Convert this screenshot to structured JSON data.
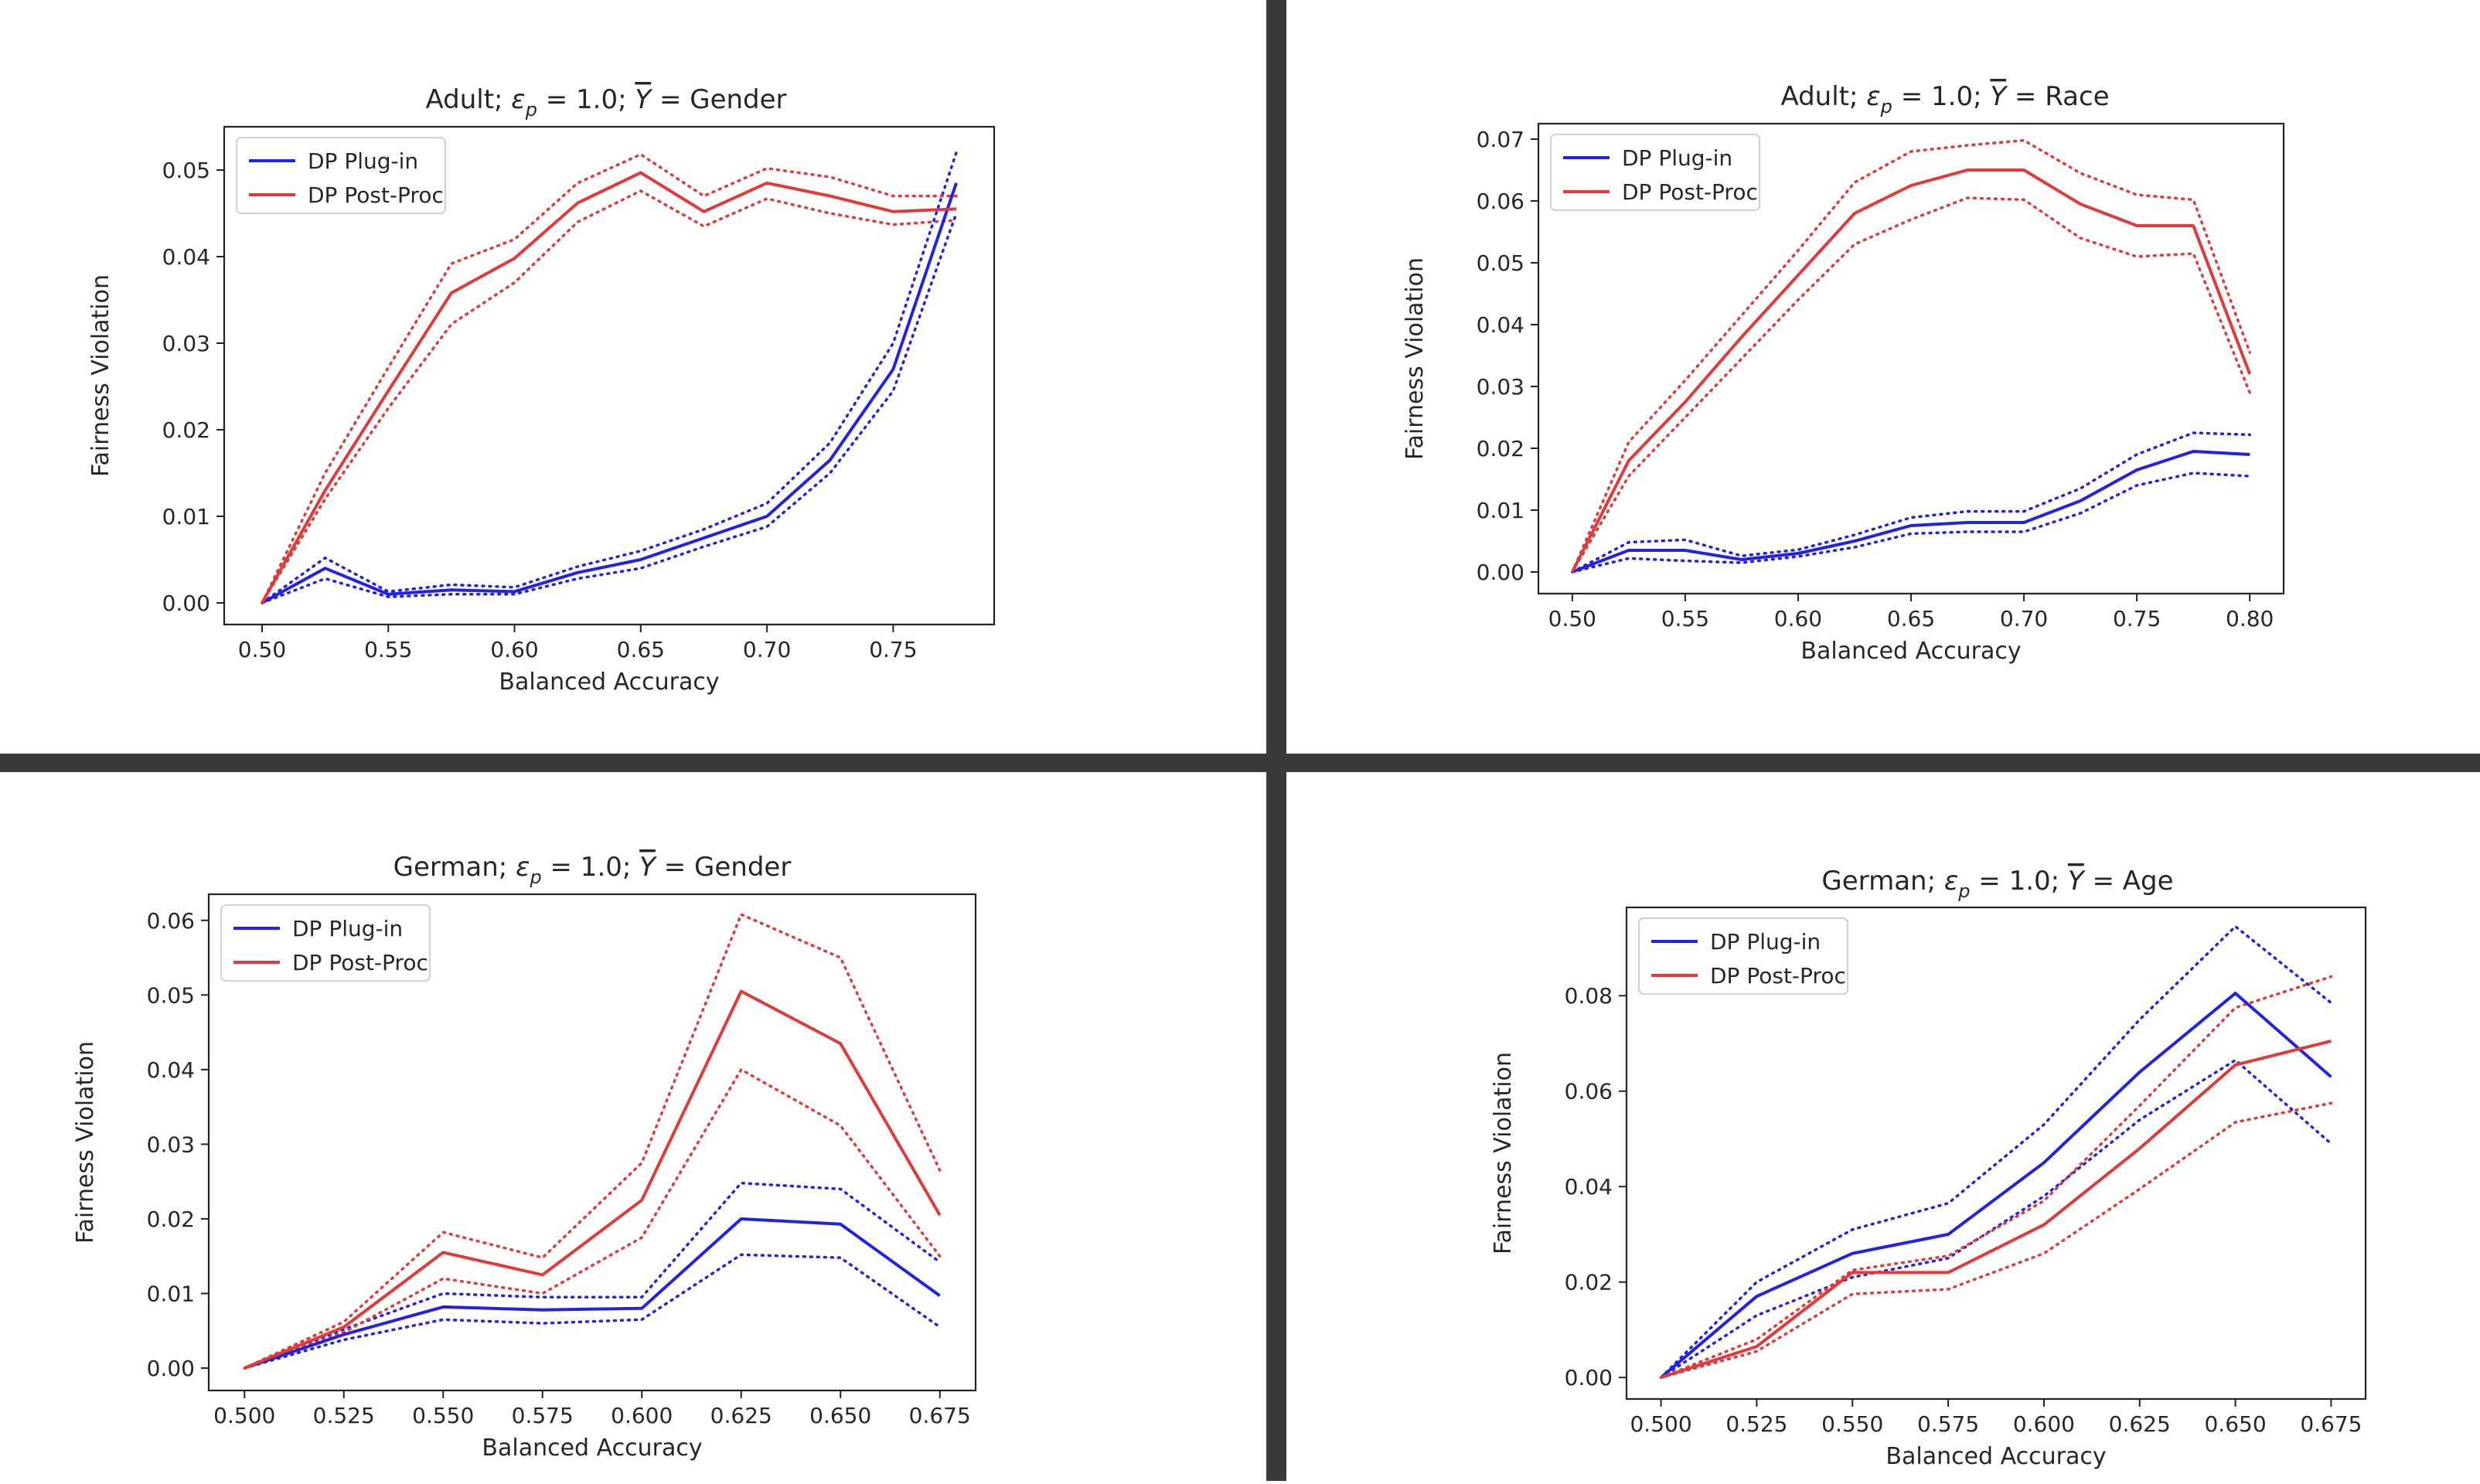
{
  "divider_color": "#3a3a3a",
  "legend_labels": {
    "plugin": "DP Plug-in",
    "postproc": "DP Post-Proc"
  },
  "colors": {
    "plugin": "#2222e6",
    "postproc": "#e03a3a"
  },
  "chart_data": [
    {
      "type": "line",
      "title_prefix": "Adult; ",
      "eps_label": "ε",
      "eps_sub": "p",
      "eps_value": " = 1.0;  ",
      "ybar": "Y",
      "title_suffix": " = Gender",
      "xlabel": "Balanced Accuracy",
      "ylabel": "Fairness Violation",
      "xlim": [
        0.485,
        0.79
      ],
      "ylim": [
        -0.0025,
        0.055
      ],
      "xticks": [
        0.5,
        0.55,
        0.6,
        0.65,
        0.7,
        0.75
      ],
      "xtick_labels": [
        "0.50",
        "0.55",
        "0.60",
        "0.65",
        "0.70",
        "0.75"
      ],
      "yticks": [
        0.0,
        0.01,
        0.02,
        0.03,
        0.04,
        0.05
      ],
      "ytick_labels": [
        "0.00",
        "0.01",
        "0.02",
        "0.03",
        "0.04",
        "0.05"
      ],
      "legend": "top-left",
      "series": [
        {
          "name": "DP Plug-in",
          "color": "plugin",
          "x": [
            0.5,
            0.525,
            0.55,
            0.575,
            0.6,
            0.625,
            0.65,
            0.675,
            0.7,
            0.725,
            0.75,
            0.775
          ],
          "y": [
            0.0,
            0.004,
            0.001,
            0.0015,
            0.0013,
            0.0035,
            0.005,
            0.0075,
            0.01,
            0.0165,
            0.027,
            0.0485
          ],
          "lower": [
            0.0,
            0.0028,
            0.0007,
            0.001,
            0.001,
            0.0028,
            0.004,
            0.0065,
            0.0088,
            0.015,
            0.0245,
            0.045
          ],
          "upper": [
            0.0,
            0.0052,
            0.0013,
            0.0021,
            0.0018,
            0.0042,
            0.006,
            0.0085,
            0.0115,
            0.0185,
            0.03,
            0.052
          ]
        },
        {
          "name": "DP Post-Proc",
          "color": "postproc",
          "x": [
            0.5,
            0.525,
            0.55,
            0.575,
            0.6,
            0.625,
            0.65,
            0.675,
            0.7,
            0.725,
            0.75,
            0.775
          ],
          "y": [
            0.0,
            0.013,
            0.0245,
            0.0358,
            0.0398,
            0.0462,
            0.0497,
            0.0452,
            0.0485,
            0.047,
            0.0452,
            0.0455
          ],
          "lower": [
            0.0,
            0.012,
            0.0225,
            0.0322,
            0.037,
            0.044,
            0.0476,
            0.0435,
            0.0467,
            0.045,
            0.0437,
            0.0442
          ],
          "upper": [
            0.0,
            0.015,
            0.0272,
            0.0392,
            0.042,
            0.0485,
            0.0518,
            0.047,
            0.0502,
            0.0492,
            0.047,
            0.047
          ]
        }
      ]
    },
    {
      "type": "line",
      "title_prefix": "Adult; ",
      "eps_label": "ε",
      "eps_sub": "p",
      "eps_value": " = 1.0;  ",
      "ybar": "Y",
      "title_suffix": " = Race",
      "xlabel": "Balanced Accuracy",
      "ylabel": "Fairness Violation",
      "xlim": [
        0.485,
        0.815
      ],
      "ylim": [
        -0.0035,
        0.0725
      ],
      "xticks": [
        0.5,
        0.55,
        0.6,
        0.65,
        0.7,
        0.75,
        0.8
      ],
      "xtick_labels": [
        "0.50",
        "0.55",
        "0.60",
        "0.65",
        "0.70",
        "0.75",
        "0.80"
      ],
      "yticks": [
        0.0,
        0.01,
        0.02,
        0.03,
        0.04,
        0.05,
        0.06,
        0.07
      ],
      "ytick_labels": [
        "0.00",
        "0.01",
        "0.02",
        "0.03",
        "0.04",
        "0.05",
        "0.06",
        "0.07"
      ],
      "legend": "top-left",
      "series": [
        {
          "name": "DP Plug-in",
          "color": "plugin",
          "x": [
            0.5,
            0.525,
            0.55,
            0.575,
            0.6,
            0.625,
            0.65,
            0.675,
            0.7,
            0.725,
            0.75,
            0.775,
            0.8
          ],
          "y": [
            0.0,
            0.0035,
            0.0035,
            0.002,
            0.003,
            0.005,
            0.0075,
            0.008,
            0.008,
            0.0115,
            0.0165,
            0.0195,
            0.019
          ],
          "lower": [
            0.0,
            0.0022,
            0.0018,
            0.0015,
            0.0025,
            0.004,
            0.0062,
            0.0065,
            0.0065,
            0.0095,
            0.014,
            0.016,
            0.0155
          ],
          "upper": [
            0.0,
            0.0048,
            0.0052,
            0.0026,
            0.0036,
            0.006,
            0.0088,
            0.0098,
            0.0098,
            0.0135,
            0.019,
            0.0225,
            0.0222
          ]
        },
        {
          "name": "DP Post-Proc",
          "color": "postproc",
          "x": [
            0.5,
            0.525,
            0.55,
            0.575,
            0.6,
            0.625,
            0.65,
            0.675,
            0.7,
            0.725,
            0.75,
            0.775,
            0.8
          ],
          "y": [
            0.0,
            0.018,
            0.0275,
            0.038,
            0.048,
            0.058,
            0.0625,
            0.065,
            0.065,
            0.0595,
            0.056,
            0.056,
            0.032
          ],
          "lower": [
            0.0,
            0.0155,
            0.025,
            0.0345,
            0.044,
            0.053,
            0.057,
            0.0605,
            0.0602,
            0.054,
            0.051,
            0.0515,
            0.029
          ],
          "upper": [
            0.0,
            0.021,
            0.031,
            0.0415,
            0.052,
            0.063,
            0.068,
            0.069,
            0.0698,
            0.0645,
            0.061,
            0.0602,
            0.0355
          ]
        }
      ]
    },
    {
      "type": "line",
      "title_prefix": "German; ",
      "eps_label": "ε",
      "eps_sub": "p",
      "eps_value": " = 1.0;  ",
      "ybar": "Y",
      "title_suffix": " = Gender",
      "xlabel": "Balanced Accuracy",
      "ylabel": "Fairness Violation",
      "xlim": [
        0.491,
        0.684
      ],
      "ylim": [
        -0.003,
        0.0635
      ],
      "xticks": [
        0.5,
        0.525,
        0.55,
        0.575,
        0.6,
        0.625,
        0.65,
        0.675
      ],
      "xtick_labels": [
        "0.500",
        "0.525",
        "0.550",
        "0.575",
        "0.600",
        "0.625",
        "0.650",
        "0.675"
      ],
      "yticks": [
        0.0,
        0.01,
        0.02,
        0.03,
        0.04,
        0.05,
        0.06
      ],
      "ytick_labels": [
        "0.00",
        "0.01",
        "0.02",
        "0.03",
        "0.04",
        "0.05",
        "0.06"
      ],
      "legend": "top-left",
      "series": [
        {
          "name": "DP Plug-in",
          "color": "plugin",
          "x": [
            0.5,
            0.525,
            0.55,
            0.575,
            0.6,
            0.625,
            0.65,
            0.675
          ],
          "y": [
            0.0,
            0.0045,
            0.0082,
            0.0078,
            0.008,
            0.02,
            0.0193,
            0.0097
          ],
          "lower": [
            0.0,
            0.0038,
            0.0065,
            0.006,
            0.0065,
            0.0152,
            0.0148,
            0.0055
          ],
          "upper": [
            0.0,
            0.0052,
            0.01,
            0.0095,
            0.0095,
            0.0248,
            0.024,
            0.0142
          ]
        },
        {
          "name": "DP Post-Proc",
          "color": "postproc",
          "x": [
            0.5,
            0.525,
            0.55,
            0.575,
            0.6,
            0.625,
            0.65,
            0.675
          ],
          "y": [
            0.0,
            0.0055,
            0.0155,
            0.0125,
            0.0225,
            0.0505,
            0.0435,
            0.0205
          ],
          "lower": [
            0.0,
            0.0048,
            0.012,
            0.01,
            0.0175,
            0.04,
            0.0325,
            0.015
          ],
          "upper": [
            0.0,
            0.0062,
            0.0182,
            0.0148,
            0.0275,
            0.0608,
            0.055,
            0.0265
          ]
        }
      ]
    },
    {
      "type": "line",
      "title_prefix": "German; ",
      "eps_label": "ε",
      "eps_sub": "p",
      "eps_value": " = 1.0;  ",
      "ybar": "Y",
      "title_suffix": " = Age",
      "xlabel": "Balanced Accuracy",
      "ylabel": "Fairness Violation",
      "xlim": [
        0.491,
        0.684
      ],
      "ylim": [
        -0.0045,
        0.0985
      ],
      "xticks": [
        0.5,
        0.525,
        0.55,
        0.575,
        0.6,
        0.625,
        0.65,
        0.675
      ],
      "xtick_labels": [
        "0.500",
        "0.525",
        "0.550",
        "0.575",
        "0.600",
        "0.625",
        "0.650",
        "0.675"
      ],
      "yticks": [
        0.0,
        0.02,
        0.04,
        0.06,
        0.08
      ],
      "ytick_labels": [
        "0.00",
        "0.02",
        "0.04",
        "0.06",
        "0.08"
      ],
      "legend": "top-left",
      "series": [
        {
          "name": "DP Plug-in",
          "color": "plugin",
          "x": [
            0.5,
            0.525,
            0.55,
            0.575,
            0.6,
            0.625,
            0.65,
            0.675
          ],
          "y": [
            0.0,
            0.017,
            0.026,
            0.03,
            0.045,
            0.064,
            0.0805,
            0.063
          ],
          "lower": [
            0.0,
            0.013,
            0.021,
            0.025,
            0.038,
            0.054,
            0.0665,
            0.049
          ],
          "upper": [
            0.0,
            0.02,
            0.031,
            0.0365,
            0.053,
            0.075,
            0.0945,
            0.0785
          ]
        },
        {
          "name": "DP Post-Proc",
          "color": "postproc",
          "x": [
            0.5,
            0.525,
            0.55,
            0.575,
            0.6,
            0.625,
            0.65,
            0.675
          ],
          "y": [
            0.0,
            0.0065,
            0.022,
            0.022,
            0.032,
            0.048,
            0.0655,
            0.0705
          ],
          "lower": [
            0.0,
            0.0055,
            0.0175,
            0.0185,
            0.026,
            0.0395,
            0.0535,
            0.0575
          ],
          "upper": [
            0.0,
            0.008,
            0.0225,
            0.0255,
            0.037,
            0.057,
            0.0775,
            0.084
          ]
        }
      ]
    }
  ]
}
